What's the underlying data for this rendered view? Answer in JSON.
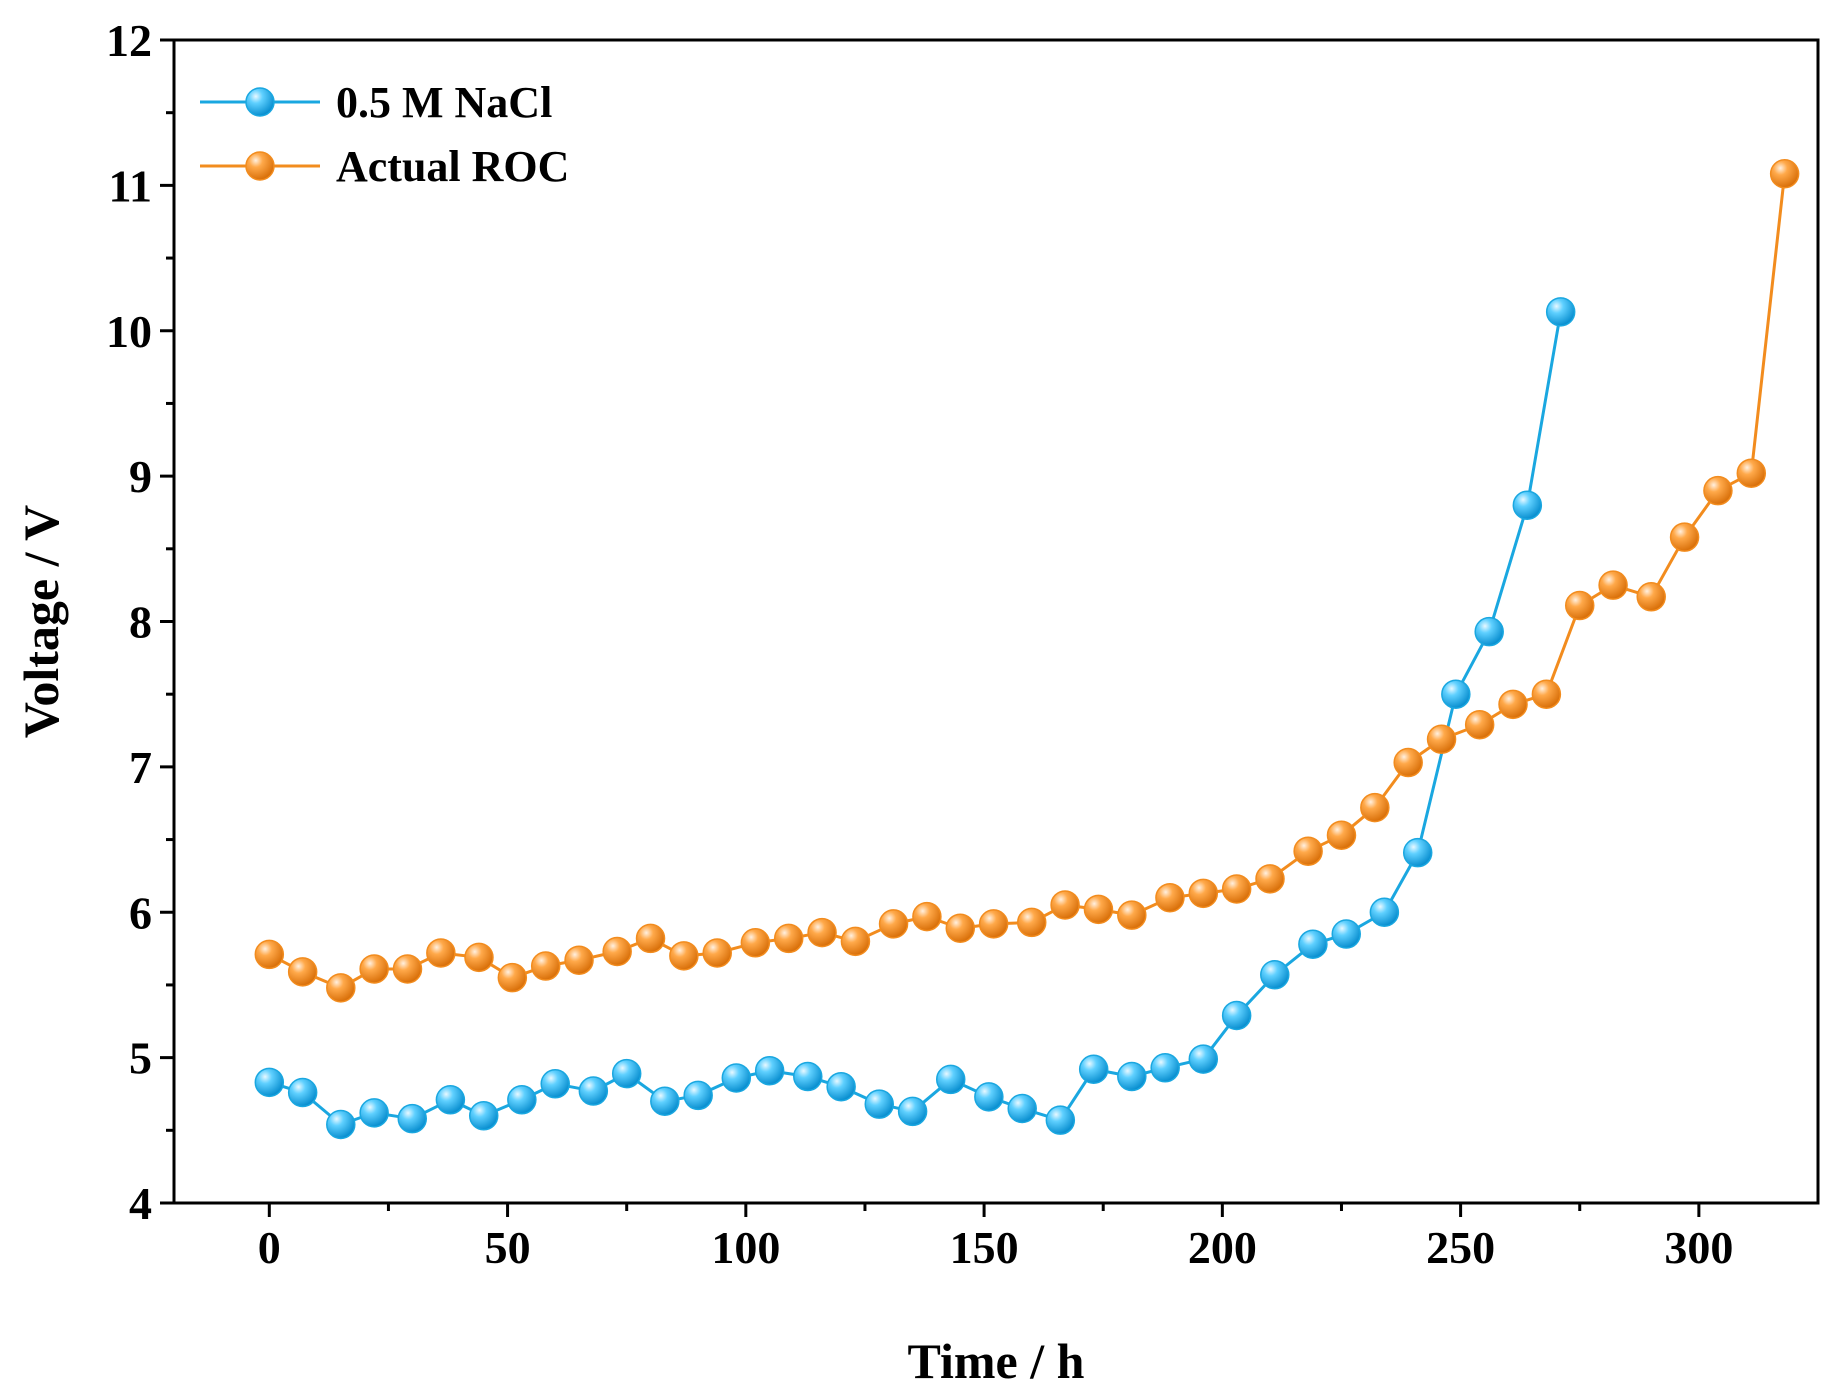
{
  "chart_data": {
    "type": "line",
    "xlabel": "Time / h",
    "ylabel": "Voltage / V",
    "xlim": [
      -20,
      325
    ],
    "ylim": [
      4,
      12
    ],
    "x_ticks": [
      0,
      50,
      100,
      150,
      200,
      250,
      300
    ],
    "y_ticks": [
      4,
      5,
      6,
      7,
      8,
      9,
      10,
      11,
      12
    ],
    "grid": false,
    "legend_position": "top-left",
    "series": [
      {
        "name": "0.5 M NaCl",
        "color": "#1aa7e0",
        "marker": "sphere",
        "x": [
          0,
          7,
          15,
          22,
          30,
          38,
          45,
          53,
          60,
          68,
          75,
          83,
          90,
          98,
          105,
          113,
          120,
          128,
          135,
          143,
          151,
          158,
          166,
          173,
          181,
          188,
          196,
          203,
          211,
          219,
          226,
          234,
          241,
          249,
          256,
          264,
          271
        ],
        "y": [
          4.83,
          4.76,
          4.54,
          4.62,
          4.58,
          4.71,
          4.6,
          4.71,
          4.82,
          4.77,
          4.89,
          4.7,
          4.74,
          4.86,
          4.91,
          4.87,
          4.8,
          4.68,
          4.63,
          4.85,
          4.73,
          4.65,
          4.57,
          4.92,
          4.87,
          4.93,
          4.99,
          5.29,
          5.57,
          5.78,
          5.85,
          6.0,
          6.41,
          7.5,
          7.93,
          8.8,
          10.13
        ]
      },
      {
        "name": "Actual ROC",
        "color": "#f28c1e",
        "marker": "sphere",
        "x": [
          0,
          7,
          15,
          22,
          29,
          36,
          44,
          51,
          58,
          65,
          73,
          80,
          87,
          94,
          102,
          109,
          116,
          123,
          131,
          138,
          145,
          152,
          160,
          167,
          174,
          181,
          189,
          196,
          203,
          210,
          218,
          225,
          232,
          239,
          246,
          254,
          261,
          268,
          275,
          282,
          290,
          297,
          304,
          311,
          318
        ],
        "y": [
          5.71,
          5.59,
          5.48,
          5.61,
          5.61,
          5.72,
          5.69,
          5.55,
          5.63,
          5.67,
          5.73,
          5.82,
          5.7,
          5.72,
          5.79,
          5.82,
          5.86,
          5.8,
          5.92,
          5.97,
          5.89,
          5.92,
          5.93,
          6.05,
          6.02,
          5.98,
          6.1,
          6.13,
          6.16,
          6.23,
          6.42,
          6.53,
          6.72,
          7.03,
          7.19,
          7.29,
          7.43,
          7.5,
          8.11,
          8.25,
          8.17,
          8.58,
          8.9,
          9.02,
          11.08
        ]
      }
    ]
  }
}
